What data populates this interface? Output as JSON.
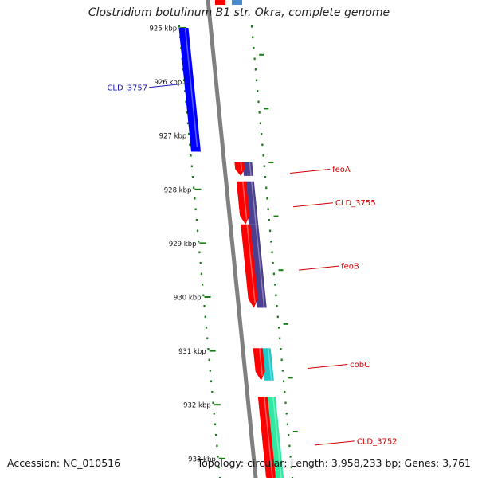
{
  "title": "Clostridium botulinum B1 str. Okra, complete genome",
  "accession": "Accession: NC_010516",
  "summary": "Topology: circular; Length: 3,958,233 bp; Genes: 3,761",
  "ruler": {
    "labels": [
      "925 kbp",
      "926 kbp",
      "927 kbp",
      "928 kbp",
      "929 kbp",
      "930 kbp",
      "931 kbp",
      "932 kbp",
      "933 kbp"
    ],
    "color": "#1a7a1a"
  },
  "genes": [
    {
      "label": "CLD_3757",
      "strand": "minus",
      "start_kbp": 925.0,
      "end_kbp": 927.3,
      "color": "#0000ff",
      "label_color": "#1a1aa8"
    },
    {
      "label": "feoA",
      "strand": "plus",
      "start_kbp": 927.5,
      "end_kbp": 927.75,
      "color": "#ff0000",
      "label_color": "#cc0000"
    },
    {
      "label": "CLD_3755",
      "strand": "plus",
      "start_kbp": 927.85,
      "end_kbp": 928.65,
      "color": "#ff0000",
      "label_color": "#cc0000"
    },
    {
      "label": "feoB",
      "strand": "plus",
      "start_kbp": 928.65,
      "end_kbp": 930.2,
      "color": "#ff0000",
      "label_color": "#cc0000"
    },
    {
      "label": "cobC",
      "strand": "plus",
      "start_kbp": 930.95,
      "end_kbp": 931.55,
      "color": "#ff0000",
      "label_color": "#cc0000"
    },
    {
      "label": "CLD_3752",
      "strand": "plus",
      "start_kbp": 931.85,
      "end_kbp": 933.5,
      "color": "#ff0000",
      "label_color": "#cc0000"
    }
  ],
  "features": [
    {
      "start_kbp": 927.5,
      "end_kbp": 927.75,
      "color": "#4b3f8f"
    },
    {
      "start_kbp": 927.85,
      "end_kbp": 928.65,
      "color": "#4b3f8f"
    },
    {
      "start_kbp": 928.65,
      "end_kbp": 930.2,
      "color": "#4b3f8f"
    },
    {
      "start_kbp": 930.95,
      "end_kbp": 931.55,
      "color": "#20c8c8"
    },
    {
      "start_kbp": 931.85,
      "end_kbp": 933.5,
      "color": "#30e8a0"
    }
  ],
  "top_fragments": [
    {
      "color": "#ff0000"
    },
    {
      "color": "#4a8ad0"
    }
  ],
  "backbone_color": "#808080"
}
